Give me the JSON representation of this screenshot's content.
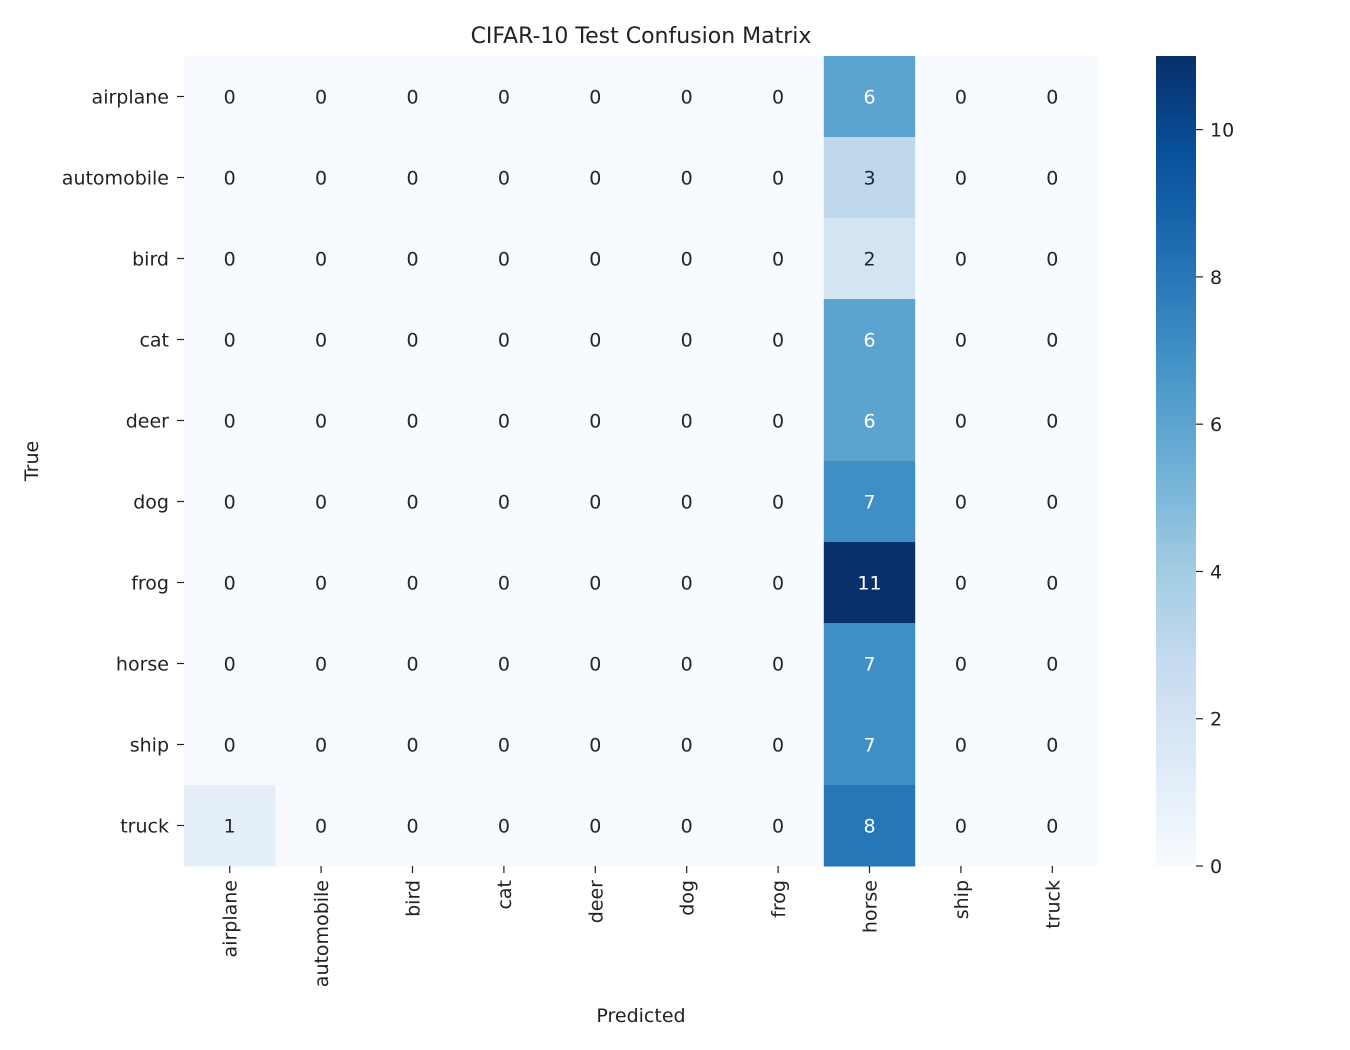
{
  "chart_data": {
    "type": "heatmap",
    "title": "CIFAR-10 Test Confusion Matrix",
    "xlabel": "Predicted",
    "ylabel": "True",
    "x_categories": [
      "airplane",
      "automobile",
      "bird",
      "cat",
      "deer",
      "dog",
      "frog",
      "horse",
      "ship",
      "truck"
    ],
    "y_categories": [
      "airplane",
      "automobile",
      "bird",
      "cat",
      "deer",
      "dog",
      "frog",
      "horse",
      "ship",
      "truck"
    ],
    "values": [
      [
        0,
        0,
        0,
        0,
        0,
        0,
        0,
        6,
        0,
        0
      ],
      [
        0,
        0,
        0,
        0,
        0,
        0,
        0,
        3,
        0,
        0
      ],
      [
        0,
        0,
        0,
        0,
        0,
        0,
        0,
        2,
        0,
        0
      ],
      [
        0,
        0,
        0,
        0,
        0,
        0,
        0,
        6,
        0,
        0
      ],
      [
        0,
        0,
        0,
        0,
        0,
        0,
        0,
        6,
        0,
        0
      ],
      [
        0,
        0,
        0,
        0,
        0,
        0,
        0,
        7,
        0,
        0
      ],
      [
        0,
        0,
        0,
        0,
        0,
        0,
        0,
        11,
        0,
        0
      ],
      [
        0,
        0,
        0,
        0,
        0,
        0,
        0,
        7,
        0,
        0
      ],
      [
        0,
        0,
        0,
        0,
        0,
        0,
        0,
        7,
        0,
        0
      ],
      [
        1,
        0,
        0,
        0,
        0,
        0,
        0,
        8,
        0,
        0
      ]
    ],
    "colormap": "Blues",
    "color_range": [
      0,
      11
    ],
    "colorbar_ticks": [
      0,
      2,
      4,
      6,
      8,
      10
    ],
    "colorbar_placement": "right",
    "grid": false
  }
}
